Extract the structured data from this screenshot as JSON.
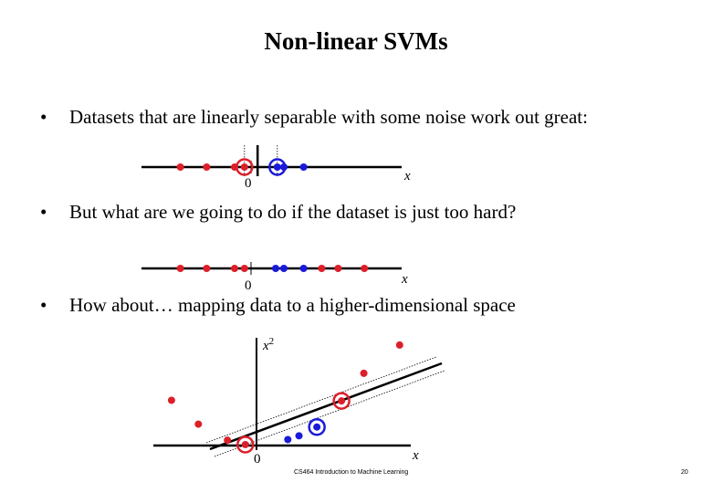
{
  "slide": {
    "title": "Non-linear SVMs",
    "bullet_glyph": "•",
    "bullets": [
      "Datasets that are linearly separable with some noise work out great:",
      "But what are we going to do if the dataset is just too hard?",
      "How about… mapping data to a higher-dimensional space"
    ],
    "footer_course": "CS464 Introduction to Machine Learning",
    "page_number": "20"
  },
  "colors": {
    "positive": "#dd1f2a",
    "negative": "#1a1adb",
    "axis": "#000000"
  },
  "chart_data": [
    {
      "type": "scatter",
      "title": "",
      "xlabel": "x",
      "zero_label": "0",
      "red_points": [
        -4.3,
        -2.7,
        -1.0,
        -0.4
      ],
      "blue_points": [
        1.6,
        2.0,
        3.2
      ],
      "support_vectors": [
        {
          "x": -0.4,
          "class": "red"
        },
        {
          "x": 1.6,
          "class": "blue"
        }
      ],
      "separator_x": 0.4,
      "margin": [
        -0.4,
        1.6
      ]
    },
    {
      "type": "scatter",
      "title": "",
      "xlabel": "x",
      "zero_label": "0",
      "red_points": [
        -4.3,
        -2.7,
        -1.0,
        -0.4,
        4.3,
        5.3,
        6.9
      ],
      "blue_points": [
        1.5,
        2.0,
        3.2
      ]
    },
    {
      "type": "scatter",
      "title": "",
      "xlabel": "x",
      "ylabel": "x2",
      "zero_label": "0",
      "red_points": [
        {
          "x": -3.8,
          "y": 14.4
        },
        {
          "x": -2.6,
          "y": 6.8
        },
        {
          "x": -1.3,
          "y": 1.7
        },
        {
          "x": -0.5,
          "y": 0.3
        },
        {
          "x": 3.8,
          "y": 14.2
        },
        {
          "x": 4.8,
          "y": 23.0
        },
        {
          "x": 6.4,
          "y": 32.0
        }
      ],
      "blue_points": [
        {
          "x": 1.4,
          "y": 1.9
        },
        {
          "x": 1.9,
          "y": 3.1
        },
        {
          "x": 2.7,
          "y": 5.9
        }
      ],
      "support_vectors": [
        {
          "x": -0.5,
          "y": 0.3,
          "class": "red"
        },
        {
          "x": 2.7,
          "y": 5.9,
          "class": "blue"
        },
        {
          "x": 3.8,
          "y": 14.2,
          "class": "red"
        }
      ],
      "xlim": [
        -4.5,
        9.5
      ],
      "ylim": [
        0,
        35
      ]
    }
  ]
}
